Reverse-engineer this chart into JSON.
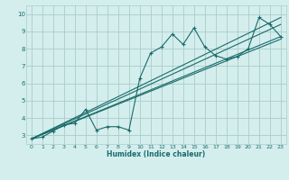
{
  "xlabel": "Humidex (Indice chaleur)",
  "bg_color": "#d4eeed",
  "grid_color": "#aacccc",
  "line_color": "#1a6b6b",
  "xlim": [
    -0.5,
    23.5
  ],
  "ylim": [
    2.5,
    10.5
  ],
  "xticks": [
    0,
    1,
    2,
    3,
    4,
    5,
    6,
    7,
    8,
    9,
    10,
    11,
    12,
    13,
    14,
    15,
    16,
    17,
    18,
    19,
    20,
    21,
    22,
    23
  ],
  "yticks": [
    3,
    4,
    5,
    6,
    7,
    8,
    9,
    10
  ],
  "series1_x": [
    0,
    1,
    2,
    3,
    4,
    5,
    6,
    7,
    8,
    9,
    10,
    11,
    12,
    13,
    14,
    15,
    16,
    17,
    18,
    19,
    20,
    21,
    22,
    23
  ],
  "series1_y": [
    2.8,
    2.9,
    3.25,
    3.6,
    3.7,
    4.5,
    3.3,
    3.5,
    3.5,
    3.3,
    6.3,
    7.75,
    8.1,
    8.85,
    8.25,
    9.2,
    8.1,
    7.6,
    7.4,
    7.55,
    8.0,
    9.8,
    9.4,
    8.7
  ],
  "line2_x": [
    0,
    23
  ],
  "line2_y": [
    2.8,
    8.7
  ],
  "line3_x": [
    0,
    23
  ],
  "line3_y": [
    2.8,
    8.55
  ],
  "line4_x": [
    0,
    23
  ],
  "line4_y": [
    2.8,
    9.4
  ],
  "line5_x": [
    0,
    23
  ],
  "line5_y": [
    2.8,
    9.8
  ]
}
